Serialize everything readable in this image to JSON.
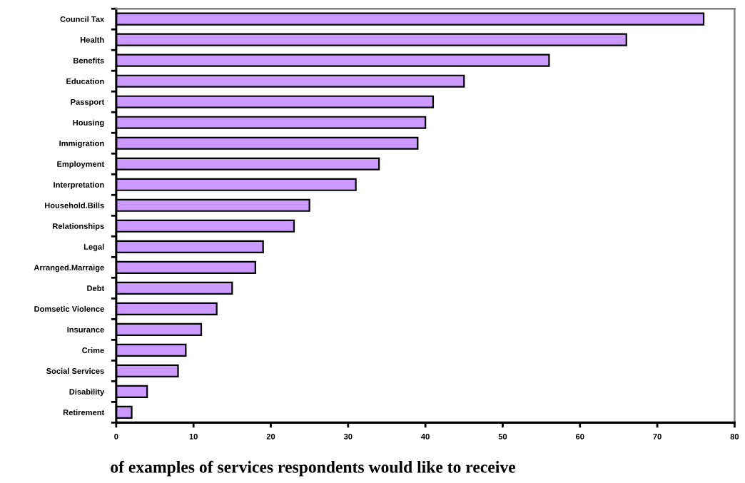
{
  "chart_data": {
    "type": "bar",
    "orientation": "horizontal",
    "categories": [
      "Council Tax",
      "Health",
      "Benefits",
      "Education",
      "Passport",
      "Housing",
      "Immigration",
      "Employment",
      "Interpretation",
      "Household.Bills",
      "Relationships",
      "Legal",
      "Arranged.Marraige",
      "Debt",
      "Domsetic Violence",
      "Insurance",
      "Crime",
      "Social Services",
      "Disability",
      "Retirement"
    ],
    "values": [
      76,
      66,
      56,
      45,
      41,
      40,
      39,
      34,
      31,
      25,
      23,
      19,
      18,
      15,
      13,
      11,
      9,
      8,
      4,
      2
    ],
    "color": "#cc99ff",
    "xlim": [
      0,
      80
    ],
    "xticks": [
      0,
      10,
      20,
      30,
      40,
      50,
      60,
      70,
      80
    ],
    "annotations": [
      "of examples of services respondents would like to receive"
    ]
  }
}
